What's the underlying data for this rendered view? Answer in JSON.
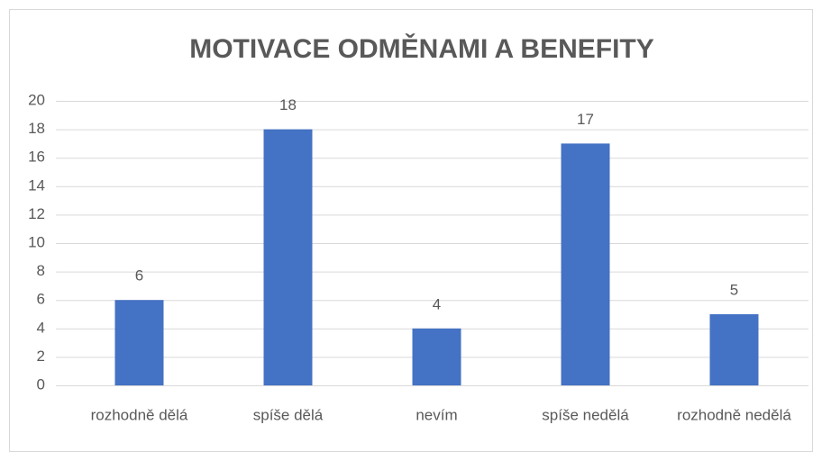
{
  "chart_data": {
    "type": "bar",
    "title": "MOTIVACE ODMĚNAMI A BENEFITY",
    "categories": [
      "rozhodně dělá",
      "spíše dělá",
      "nevím",
      "spíše nedělá",
      "rozhodně nedělá"
    ],
    "values": [
      6,
      18,
      4,
      17,
      5
    ],
    "color": "#4472c4",
    "ylim": [
      0,
      20
    ],
    "yticks": [
      0,
      2,
      4,
      6,
      8,
      10,
      12,
      14,
      16,
      18,
      20
    ],
    "grid": true
  }
}
